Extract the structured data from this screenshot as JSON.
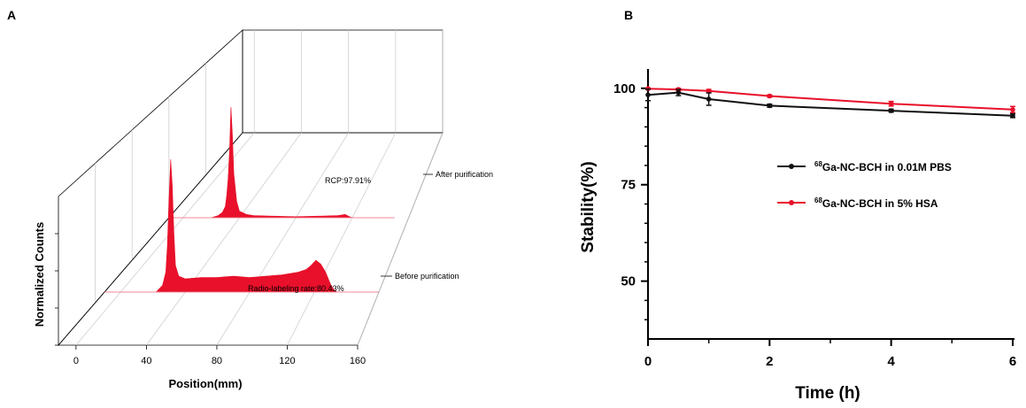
{
  "chart_data": [
    {
      "panel": "A",
      "type": "area",
      "xlabel": "Position(mm)",
      "ylabel": "Normalized Counts",
      "x_ticks": [
        0,
        40,
        80,
        120,
        160
      ],
      "xlim": [
        -10,
        160
      ],
      "series": [
        {
          "name": "After purification",
          "annotation": "RCP:97.91%",
          "color": "#e8102a",
          "x": [
            -10,
            20,
            25,
            28,
            30,
            31,
            32,
            33,
            34,
            35,
            36,
            38,
            40,
            45,
            50,
            60,
            80,
            100,
            110,
            115,
            118,
            120,
            150
          ],
          "y": [
            0,
            0,
            0.02,
            0.05,
            0.1,
            0.2,
            0.35,
            0.6,
            1.0,
            0.75,
            0.4,
            0.15,
            0.06,
            0.03,
            0.02,
            0.015,
            0.01,
            0.015,
            0.02,
            0.03,
            0.01,
            0,
            0
          ]
        },
        {
          "name": "Before purification",
          "annotation": "Radio-labeling rate:80.43%",
          "color": "#e8102a",
          "x": [
            -10,
            22,
            26,
            28,
            29,
            30,
            31,
            32,
            33,
            34,
            36,
            40,
            50,
            60,
            70,
            80,
            90,
            100,
            110,
            115,
            118,
            121,
            124,
            127,
            130,
            132,
            134,
            160
          ],
          "y": [
            0,
            0,
            0.05,
            0.15,
            0.35,
            0.7,
            1.0,
            0.8,
            0.45,
            0.2,
            0.12,
            0.1,
            0.11,
            0.11,
            0.12,
            0.11,
            0.12,
            0.13,
            0.15,
            0.17,
            0.2,
            0.24,
            0.21,
            0.15,
            0.06,
            0.02,
            0,
            0
          ]
        }
      ]
    },
    {
      "panel": "B",
      "type": "line",
      "xlabel": "Time (h)",
      "ylabel": "Stability(%)",
      "xlim": [
        0,
        6
      ],
      "ylim": [
        35,
        105
      ],
      "x_ticks": [
        0,
        2,
        4,
        6
      ],
      "y_ticks": [
        50,
        75,
        100
      ],
      "legend_position": "right-middle",
      "series": [
        {
          "name_sup": "68",
          "name_main": "Ga-NC-BCH in 0.01M PBS",
          "color": "#111111",
          "x": [
            0,
            0.5,
            1,
            2,
            4,
            6
          ],
          "y": [
            98.3,
            98.9,
            97.2,
            95.5,
            94.2,
            92.9
          ],
          "err": [
            1.5,
            0.8,
            1.6,
            0.4,
            0.4,
            0.5
          ]
        },
        {
          "name_sup": "68",
          "name_main": "Ga-NC-BCH in 5% HSA",
          "color": "#e8102a",
          "x": [
            0,
            0.5,
            1,
            2,
            4,
            6
          ],
          "y": [
            99.9,
            99.7,
            99.3,
            98.0,
            96.0,
            94.5
          ],
          "err": [
            0.2,
            0.3,
            0.4,
            0.3,
            0.6,
            0.8
          ]
        }
      ]
    }
  ]
}
